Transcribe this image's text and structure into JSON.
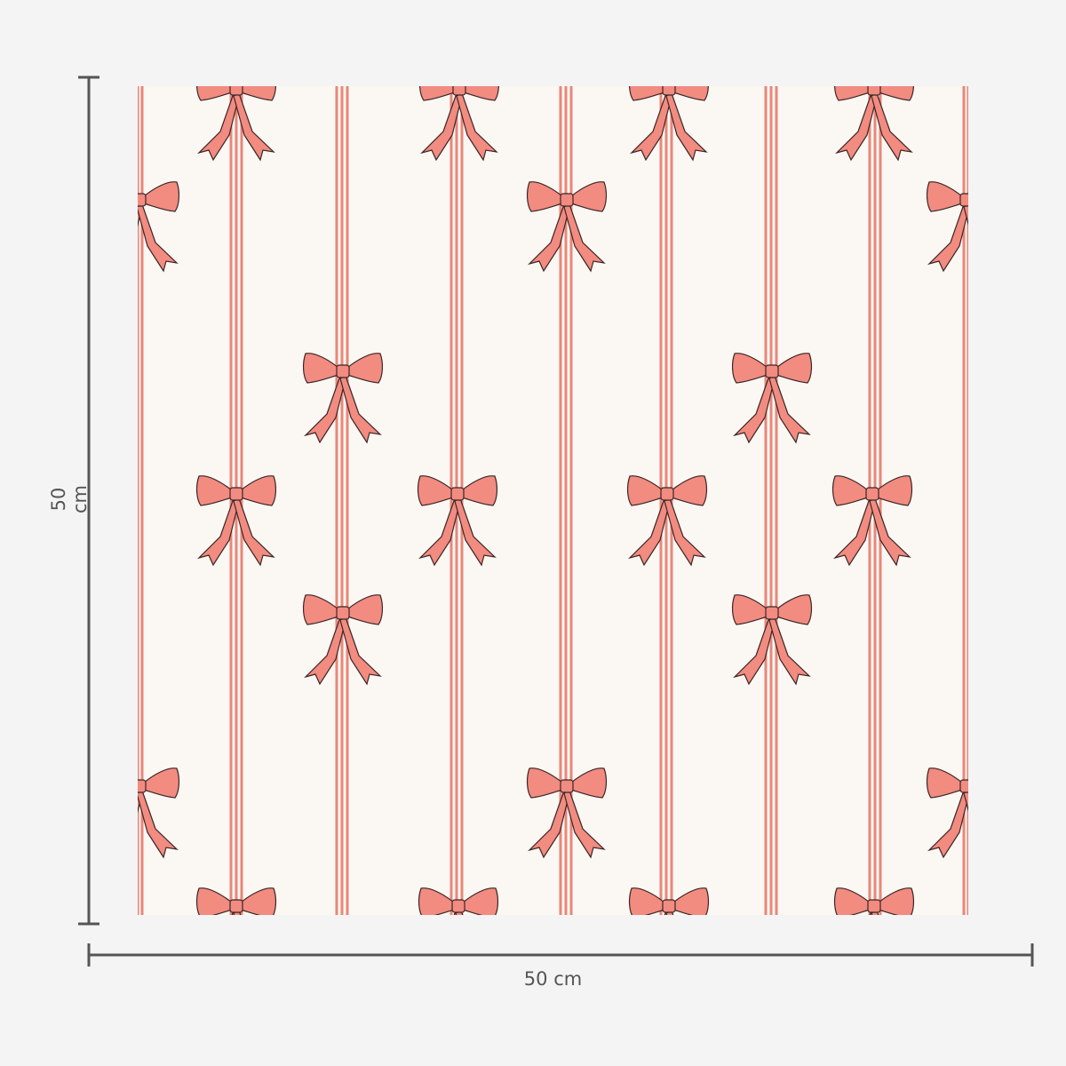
{
  "dimensions": {
    "height_label": "50 cm",
    "width_label": "50 cm"
  },
  "pattern": {
    "motif": "bow",
    "background_color": "#fbf7f3",
    "stripe_color": "#e8877a",
    "bow_fill_color": "#f28b80",
    "bow_outline_color": "#3a2626"
  },
  "colors": {
    "page_background": "#f4f4f4",
    "dimension_line": "#555555"
  }
}
